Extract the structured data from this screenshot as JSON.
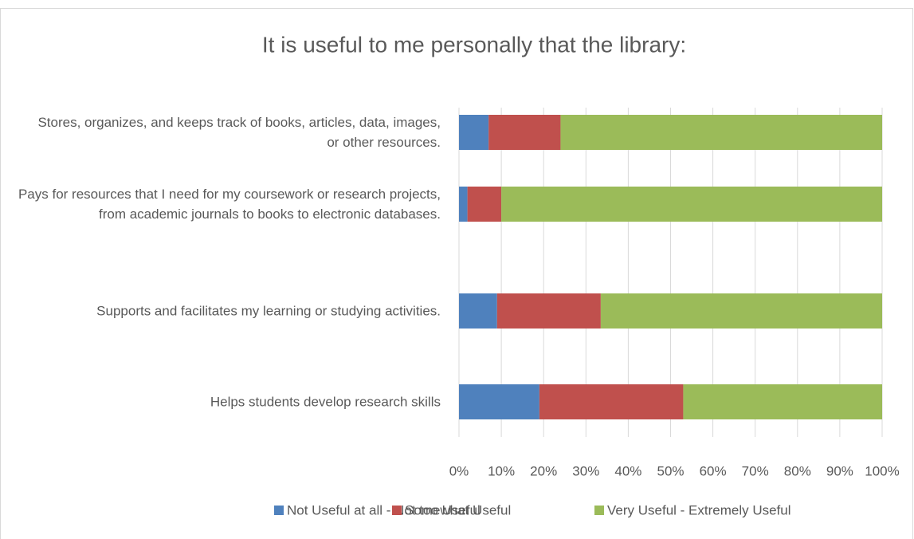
{
  "chart_data": {
    "type": "stacked_bar_horizontal",
    "title": "It is useful to me personally that the library:",
    "categories": [
      "Stores, organizes, and keeps track of books, articles, data, images, or other resources.",
      "Pays for resources that I need for my coursework or research projects, from academic journals to books to electronic databases.",
      "Supports and facilitates my learning or studying activities.",
      "Helps students develop research skills"
    ],
    "series": [
      {
        "name": "Not Useful at all - Not too Useful",
        "color": "#4f81bd",
        "values": [
          7,
          2,
          9,
          19
        ]
      },
      {
        "name": "Somewhat Useful",
        "color": "#c0504d",
        "values": [
          17,
          8,
          24.5,
          34
        ]
      },
      {
        "name": "Very Useful - Extremely Useful",
        "color": "#9bbb59",
        "values": [
          76,
          90,
          66.5,
          47
        ]
      }
    ],
    "xlim": [
      0,
      100
    ],
    "xticks": [
      {
        "value": 0,
        "label": "0%"
      },
      {
        "value": 10,
        "label": "10%"
      },
      {
        "value": 20,
        "label": "20%"
      },
      {
        "value": 30,
        "label": "30%"
      },
      {
        "value": 40,
        "label": "40%"
      },
      {
        "value": 50,
        "label": "50%"
      },
      {
        "value": 60,
        "label": "60%"
      },
      {
        "value": 70,
        "label": "70%"
      },
      {
        "value": 80,
        "label": "80%"
      },
      {
        "value": 90,
        "label": "90%"
      },
      {
        "value": 100,
        "label": "100%"
      }
    ],
    "grid": true,
    "legend": "bottom"
  }
}
